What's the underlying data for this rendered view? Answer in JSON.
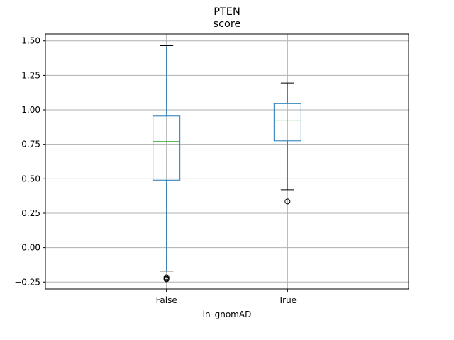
{
  "chart_data": {
    "type": "boxplot",
    "suptitle": "PTEN",
    "title": "score",
    "xlabel": "in_gnomAD",
    "ylabel": "",
    "categories": [
      "False",
      "True"
    ],
    "ylim": [
      -0.3,
      1.55
    ],
    "yticks": [
      -0.25,
      0.0,
      0.25,
      0.5,
      0.75,
      1.0,
      1.25,
      1.5
    ],
    "ytick_labels": [
      "−0.25",
      "0.00",
      "0.25",
      "0.50",
      "0.75",
      "1.00",
      "1.25",
      "1.50"
    ],
    "grid": true,
    "boxes": [
      {
        "label": "False",
        "whislo": -0.17,
        "q1": 0.49,
        "median": 0.77,
        "q3": 0.955,
        "whishi": 1.465,
        "fliers": [
          -0.215,
          -0.225,
          -0.23
        ]
      },
      {
        "label": "True",
        "whislo": 0.42,
        "q1": 0.775,
        "median": 0.925,
        "q3": 1.045,
        "whishi": 1.195,
        "fliers": [
          0.335
        ]
      }
    ],
    "colors": {
      "box": "#1f77b4",
      "median": "#2ca02c",
      "grid": "#b0b0b0",
      "whisker_cap": "#000000"
    }
  }
}
